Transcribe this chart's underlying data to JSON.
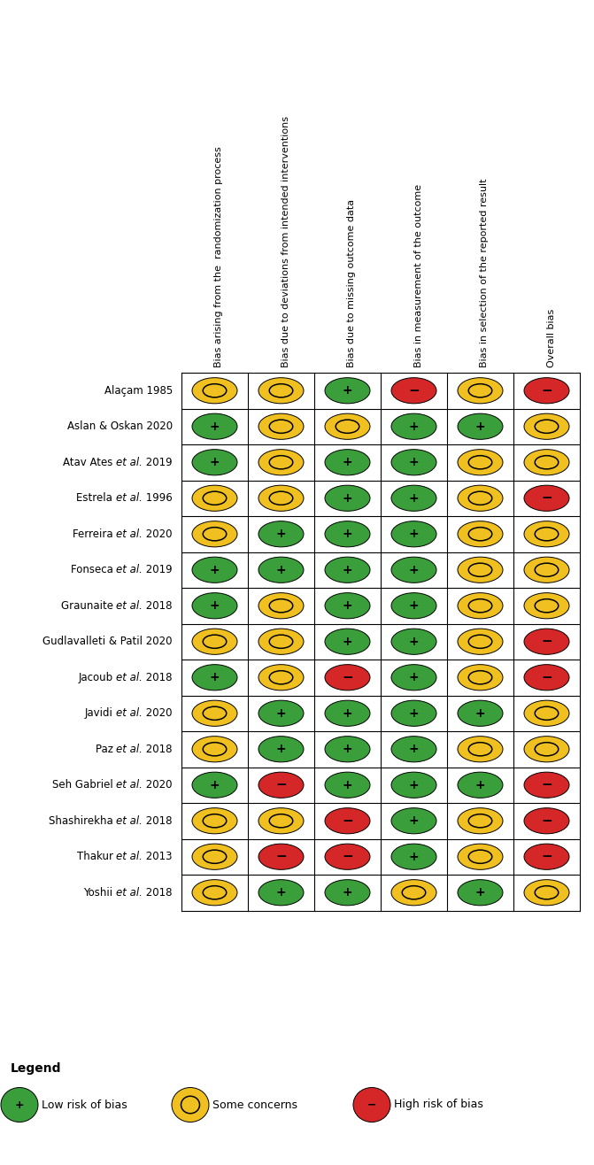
{
  "studies": [
    "Alaçam 1985",
    "Aslan & Oskan 2020",
    "Atav Ates et al. 2019",
    "Estrela et al. 1996",
    "Ferreira et al. 2020",
    "Fonseca et al. 2019",
    "Graunaite et al. 2018",
    "Gudlavalleti & Patil 2020",
    "Jacoub et al. 2018",
    "Javidi et al. 2020",
    "Paz et al. 2018",
    "Seh Gabriel et al. 2020",
    "Shashirekha et al. 2018",
    "Thakur et al. 2013",
    "Yoshii et al. 2018"
  ],
  "columns": [
    "Bias arising from the  randomization process",
    "Bias due to deviations from intended interventions",
    "Bias due to missing outcome data",
    "Bias in measurement of the outcome",
    "Bias in selection of the reported result",
    "Overall bias"
  ],
  "ratings": [
    [
      "Y",
      "Y",
      "G",
      "R",
      "Y",
      "R"
    ],
    [
      "G",
      "Y",
      "Y",
      "G",
      "G",
      "Y"
    ],
    [
      "G",
      "Y",
      "G",
      "G",
      "Y",
      "Y"
    ],
    [
      "Y",
      "Y",
      "G",
      "G",
      "Y",
      "R"
    ],
    [
      "Y",
      "G",
      "G",
      "G",
      "Y",
      "Y"
    ],
    [
      "G",
      "G",
      "G",
      "G",
      "Y",
      "Y"
    ],
    [
      "G",
      "Y",
      "G",
      "G",
      "Y",
      "Y"
    ],
    [
      "Y",
      "Y",
      "G",
      "G",
      "Y",
      "R"
    ],
    [
      "G",
      "Y",
      "R",
      "G",
      "Y",
      "R"
    ],
    [
      "Y",
      "G",
      "G",
      "G",
      "G",
      "Y"
    ],
    [
      "Y",
      "G",
      "G",
      "G",
      "Y",
      "Y"
    ],
    [
      "G",
      "R",
      "G",
      "G",
      "G",
      "R"
    ],
    [
      "Y",
      "Y",
      "R",
      "G",
      "Y",
      "R"
    ],
    [
      "Y",
      "R",
      "R",
      "G",
      "Y",
      "R"
    ],
    [
      "Y",
      "G",
      "G",
      "Y",
      "G",
      "Y"
    ]
  ],
  "colors": {
    "G": "#3a9e3a",
    "Y": "#f0c020",
    "R": "#d62728"
  },
  "legend_items": [
    {
      "label": "Low risk of bias",
      "color": "#3a9e3a",
      "symbol": "+"
    },
    {
      "label": "Some concerns",
      "color": "#f0c020",
      "symbol": "o"
    },
    {
      "label": "High risk of bias",
      "color": "#d62728",
      "symbol": "−"
    }
  ],
  "bg_color": "#ffffff",
  "fig_width": 6.71,
  "fig_height": 13.16,
  "header_fontsize": 8.0,
  "study_fontsize": 8.5,
  "symbol_fontsize": 10,
  "legend_fontsize": 9.0,
  "legend_title_fontsize": 10.0
}
